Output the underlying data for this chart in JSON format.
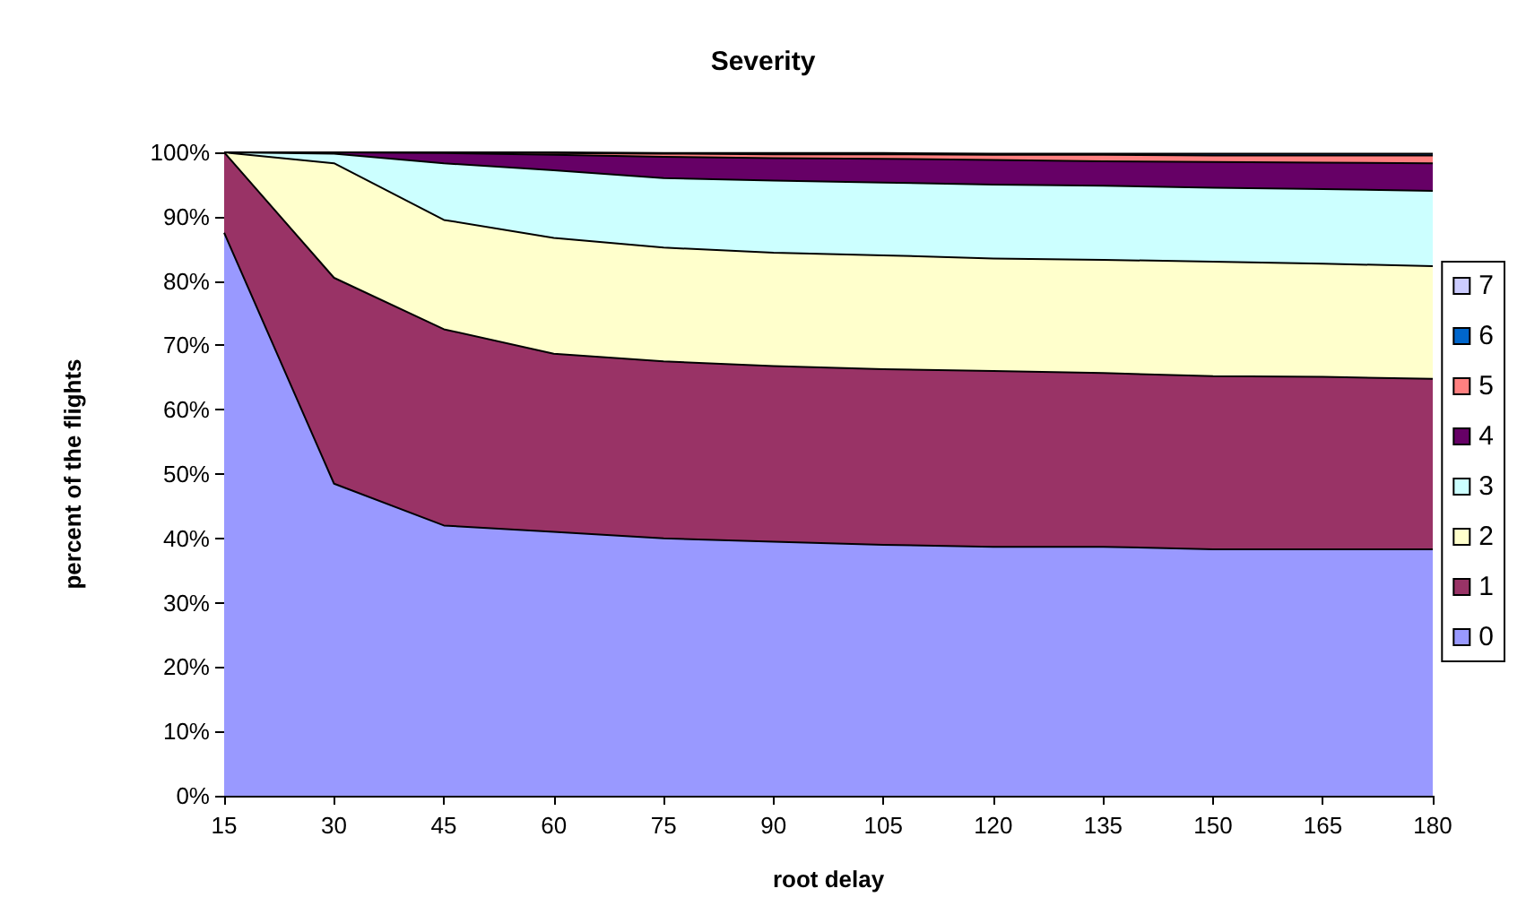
{
  "chart_data": {
    "type": "area",
    "title": "Severity",
    "xlabel": "root delay",
    "ylabel": "percent of the flights",
    "categories": [
      "15",
      "30",
      "45",
      "60",
      "75",
      "90",
      "105",
      "120",
      "135",
      "150",
      "165",
      "180"
    ],
    "stacked": true,
    "legend": "right",
    "grid": false,
    "ylim": [
      0,
      100
    ],
    "yticks": [
      {
        "value": 0,
        "label": "0%"
      },
      {
        "value": 10,
        "label": "10%"
      },
      {
        "value": 20,
        "label": "20%"
      },
      {
        "value": 30,
        "label": "30%"
      },
      {
        "value": 40,
        "label": "40%"
      },
      {
        "value": 50,
        "label": "50%"
      },
      {
        "value": 60,
        "label": "60%"
      },
      {
        "value": 70,
        "label": "70%"
      },
      {
        "value": 80,
        "label": "80%"
      },
      {
        "value": 90,
        "label": "90%"
      },
      {
        "value": 100,
        "label": "100%"
      }
    ],
    "series": [
      {
        "name": "0",
        "color": "#9999ff",
        "values": [
          87.5,
          48.5,
          42,
          41,
          40,
          39.5,
          39,
          38.7,
          38.7,
          38.3,
          38.3,
          38.3
        ]
      },
      {
        "name": "1",
        "color": "#993366",
        "values": [
          12.5,
          32,
          30.5,
          27.7,
          27.5,
          27.3,
          27.3,
          27.3,
          27,
          26.9,
          26.8,
          26.5
        ]
      },
      {
        "name": "2",
        "color": "#ffffcc",
        "values": [
          0,
          17.8,
          17,
          18,
          17.7,
          17.6,
          17.7,
          17.5,
          17.6,
          17.8,
          17.6,
          17.5
        ]
      },
      {
        "name": "3",
        "color": "#ccffff",
        "values": [
          0,
          1.5,
          8.8,
          10.5,
          10.8,
          11.2,
          11.3,
          11.5,
          11.5,
          11.5,
          11.6,
          11.7
        ]
      },
      {
        "name": "4",
        "color": "#660066",
        "values": [
          0,
          0.2,
          1.6,
          2.4,
          3.3,
          3.5,
          3.7,
          3.8,
          3.8,
          4,
          4.1,
          4.3
        ]
      },
      {
        "name": "5",
        "color": "#ff8080",
        "values": [
          0,
          0,
          0.1,
          0.3,
          0.5,
          0.6,
          0.7,
          0.8,
          1,
          1,
          1.1,
          1.2
        ]
      },
      {
        "name": "6",
        "color": "#0066cc",
        "values": [
          0,
          0,
          0,
          0.1,
          0.1,
          0.2,
          0.2,
          0.2,
          0.2,
          0.3,
          0.3,
          0.3
        ]
      },
      {
        "name": "7",
        "color": "#ccccff",
        "values": [
          null,
          null,
          null,
          null,
          null,
          null,
          null,
          null,
          null,
          null,
          null,
          null
        ]
      }
    ]
  }
}
